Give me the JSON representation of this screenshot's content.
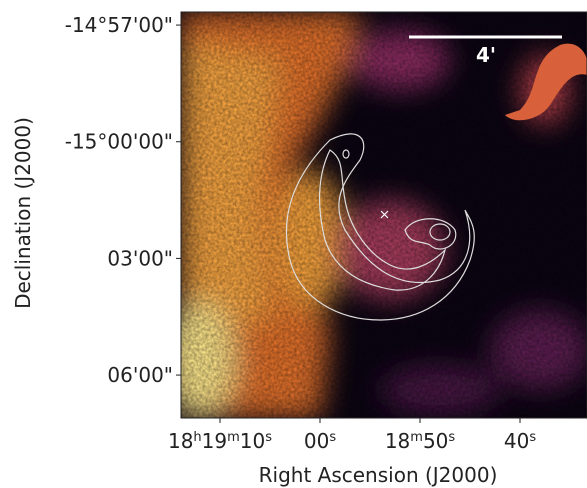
{
  "chart_data": {
    "type": "image",
    "xlabel": "Right Ascension (J2000)",
    "ylabel": "Declination (J2000)",
    "xlim": [
      1153.9,
      1113.3
    ],
    "xticks": [
      {
        "value": 1150,
        "label": "18h19m10s"
      },
      {
        "value": 1140,
        "label": "00s"
      },
      {
        "value": 1130,
        "label": "18m50s"
      },
      {
        "value": 1120,
        "label": "40s"
      }
    ],
    "ylim": [
      -15.1184,
      -14.9444
    ],
    "yticks": [
      {
        "value": -14.95,
        "label": "-14°57'00\""
      },
      {
        "value": -15.0,
        "label": "-15°00'00\""
      },
      {
        "value": -15.05,
        "label": "03'00\""
      },
      {
        "value": -15.1,
        "label": "06'00\""
      }
    ],
    "scalebar_label": "4'"
  }
}
